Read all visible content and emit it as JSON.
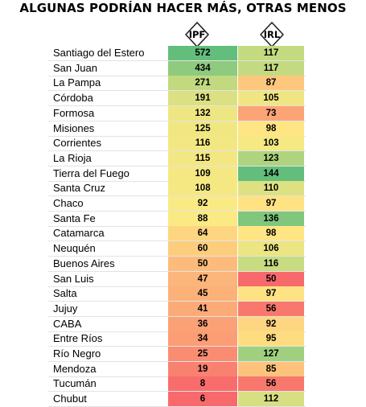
{
  "title": "ALGUNAS PODRÍAN HACER MÁS, OTRAS MENOS",
  "chart_data": {
    "type": "table",
    "title": "ALGUNAS PODRÍAN HACER MÁS, OTRAS MENOS",
    "columns": [
      "IPF",
      "IRL"
    ],
    "color_scale": {
      "low": "#f8696b",
      "mid": "#ffeb84",
      "high": "#63be7b"
    },
    "rows": [
      {
        "name": "Santiago del Estero",
        "IPF": 572,
        "IRL": 117
      },
      {
        "name": "San Juan",
        "IPF": 434,
        "IRL": 117
      },
      {
        "name": "La Pampa",
        "IPF": 271,
        "IRL": 87
      },
      {
        "name": "Córdoba",
        "IPF": 191,
        "IRL": 105
      },
      {
        "name": "Formosa",
        "IPF": 132,
        "IRL": 73
      },
      {
        "name": "Misiones",
        "IPF": 125,
        "IRL": 98
      },
      {
        "name": "Corrientes",
        "IPF": 116,
        "IRL": 103
      },
      {
        "name": "La Rioja",
        "IPF": 115,
        "IRL": 123
      },
      {
        "name": "Tierra del Fuego",
        "IPF": 109,
        "IRL": 144
      },
      {
        "name": "Santa Cruz",
        "IPF": 108,
        "IRL": 110
      },
      {
        "name": "Chaco",
        "IPF": 92,
        "IRL": 97
      },
      {
        "name": "Santa Fe",
        "IPF": 88,
        "IRL": 136
      },
      {
        "name": "Catamarca",
        "IPF": 64,
        "IRL": 98
      },
      {
        "name": "Neuquén",
        "IPF": 60,
        "IRL": 106
      },
      {
        "name": "Buenos Aires",
        "IPF": 50,
        "IRL": 116
      },
      {
        "name": "San Luis",
        "IPF": 47,
        "IRL": 50
      },
      {
        "name": "Salta",
        "IPF": 45,
        "IRL": 97
      },
      {
        "name": "Jujuy",
        "IPF": 41,
        "IRL": 56
      },
      {
        "name": "CABA",
        "IPF": 36,
        "IRL": 92
      },
      {
        "name": "Entre Ríos",
        "IPF": 34,
        "IRL": 95
      },
      {
        "name": "Río Negro",
        "IPF": 25,
        "IRL": 127
      },
      {
        "name": "Mendoza",
        "IPF": 19,
        "IRL": 85
      },
      {
        "name": "Tucumán",
        "IPF": 8,
        "IRL": 56
      },
      {
        "name": "Chubut",
        "IPF": 6,
        "IRL": 112
      }
    ]
  }
}
